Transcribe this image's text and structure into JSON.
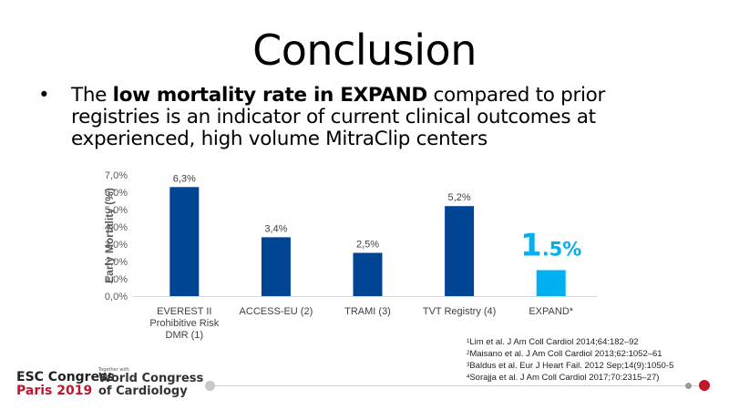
{
  "slide": {
    "title": "Conclusion",
    "bullet": {
      "part1": "The ",
      "bold": "low mortality rate in EXPAND",
      "part2": " compared to prior registries is an indicator of current clinical outcomes at experienced, high volume MitraClip centers"
    }
  },
  "chart_data": {
    "type": "bar",
    "title": "",
    "xlabel": "",
    "ylabel": "Early Mortality (%)",
    "ylim": [
      0,
      7
    ],
    "yticks": [
      "0,0%",
      "1,0%",
      "2,0%",
      "3,0%",
      "4,0%",
      "5,0%",
      "6,0%",
      "7,0%"
    ],
    "categories": [
      [
        "EVEREST II",
        "Prohibitive Risk",
        "DMR (1)"
      ],
      [
        "ACCESS-EU (2)"
      ],
      [
        "TRAMI (3)"
      ],
      [
        "TVT Registry (4)"
      ],
      [
        "EXPAND*"
      ]
    ],
    "values": [
      6.3,
      3.4,
      2.5,
      5.2,
      1.5
    ],
    "labels": [
      "6,3%",
      "3,4%",
      "2,5%",
      "5,2%",
      "1.5%"
    ],
    "colors": [
      "#004494",
      "#004494",
      "#004494",
      "#004494",
      "#00b0f0"
    ],
    "highlight_index": 4,
    "grid": false,
    "legend": "none"
  },
  "references": [
    {
      "num": "1",
      "text": "Lim et al. J Am Coll Cardiol 2014;64:182–92"
    },
    {
      "num": "2",
      "text": "Maisano et al. J Am Coll Cardiol 2013;62:1052–61"
    },
    {
      "num": "3",
      "text": "Baldus et al. Eur J Heart Fail. 2012 Sep;14(9):1050-5"
    },
    {
      "num": "4",
      "text": "Sorajja et al. J Am Coll Cardiol 2017;70:2315–27)"
    }
  ],
  "footer": {
    "esc_line1": "ESC Congress",
    "esc_line2": "Paris 2019",
    "together": "Together with",
    "wcc_line1": "World Congress",
    "wcc_line2": "of Cardiology"
  }
}
